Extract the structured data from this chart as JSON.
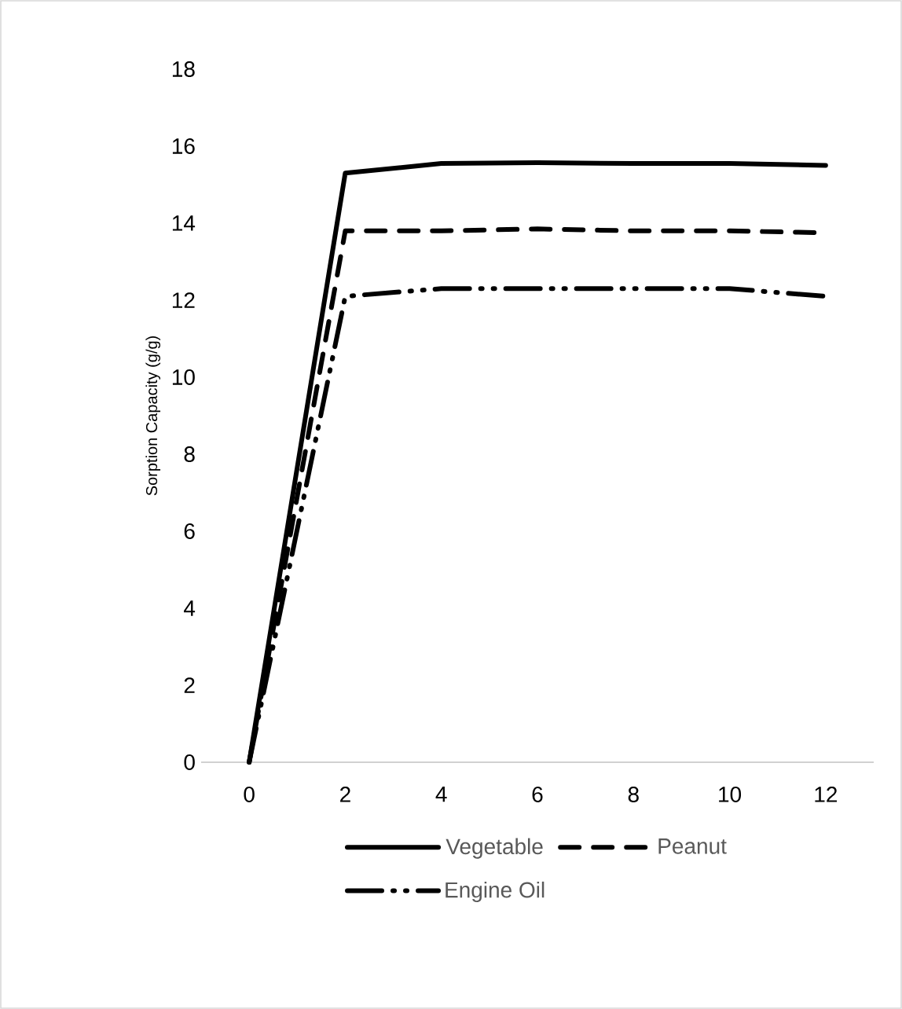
{
  "chart_data": {
    "type": "line",
    "ylabel": "Sorption Capacity (g/g)",
    "categories": [
      "0",
      "2",
      "4",
      "6",
      "8",
      "10",
      "12"
    ],
    "series": [
      {
        "name": "Vegetable",
        "color": "#000000",
        "line_style": "solid",
        "values": [
          0,
          15.3,
          15.55,
          15.57,
          15.55,
          15.55,
          15.5
        ]
      },
      {
        "name": "Peanut",
        "color": "#000000",
        "line_style": "dashed",
        "values": [
          0,
          13.8,
          13.8,
          13.85,
          13.8,
          13.8,
          13.75
        ]
      },
      {
        "name": "Engine Oil",
        "color": "#000000",
        "line_style": "dashdot",
        "values": [
          0,
          12.1,
          12.3,
          12.3,
          12.3,
          12.3,
          12.1
        ]
      }
    ],
    "ylim": [
      0,
      18
    ],
    "yticks": [
      0,
      2,
      4,
      6,
      8,
      10,
      12,
      14,
      16,
      18
    ],
    "grid": false,
    "legend": "bottom",
    "marker": "none"
  }
}
